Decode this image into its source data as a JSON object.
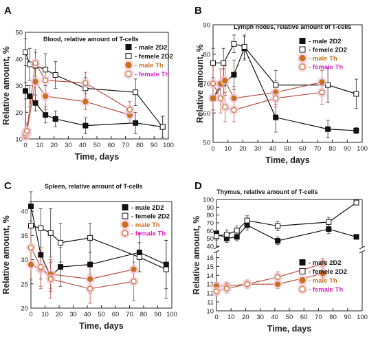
{
  "colors": {
    "male2D2": "#111111",
    "female2D2": "#111111",
    "maleTh": "#c8701e",
    "femaleTh": "#c8701e",
    "maleThText": "#c8701e",
    "femaleThText": "#e020c0",
    "thLine": "#b85040",
    "thHalo": "#f2c4dc"
  },
  "chart_data": [
    {
      "panel": "A",
      "type": "line",
      "title": "Blood, relative amount of T-cells",
      "xlabel": "Time, days",
      "ylabel": "Relative amount, %",
      "xlim": [
        0,
        100
      ],
      "ylim": [
        10,
        50
      ],
      "xticks": [
        0,
        10,
        20,
        30,
        40,
        50,
        60,
        70,
        80,
        90,
        100
      ],
      "yticks": [
        10,
        20,
        30,
        40,
        50
      ],
      "legend_position": "top-right",
      "series": [
        {
          "name": "- male 2D2",
          "marker": "filled-square",
          "x": [
            0,
            3,
            7,
            14,
            21,
            42,
            77,
            96
          ],
          "y": [
            28,
            26,
            23.5,
            19,
            17.5,
            15,
            16,
            14.5
          ],
          "err": [
            3,
            4,
            3,
            3,
            3,
            3,
            4,
            4
          ]
        },
        {
          "name": "- femele 2D2",
          "marker": "open-square",
          "x": [
            0,
            3,
            7,
            14,
            21,
            42,
            77,
            96
          ],
          "y": [
            42.5,
            38,
            37.5,
            36,
            34,
            29,
            27.5,
            14.5
          ],
          "err": [
            5,
            6,
            5,
            6,
            5,
            4,
            5,
            4
          ]
        },
        {
          "name": "- male Th",
          "marker": "filled-circle",
          "x": [
            0,
            1,
            7,
            14,
            42,
            73
          ],
          "y": [
            11,
            12.5,
            31.5,
            26,
            24,
            19
          ],
          "err": [
            1,
            2,
            5,
            5,
            3,
            3
          ]
        },
        {
          "name": "- female Th",
          "marker": "open-circle",
          "x": [
            0,
            1,
            7,
            14,
            42,
            73
          ],
          "y": [
            12,
            13,
            38.5,
            32,
            31,
            21
          ],
          "err": [
            2,
            3,
            5,
            5,
            4,
            3
          ]
        }
      ]
    },
    {
      "panel": "B",
      "type": "line",
      "title": "Lymph nodes, relative amount of T-cells",
      "xlabel": "Time, days",
      "ylabel": "Relative amount, %",
      "xlim": [
        0,
        100
      ],
      "ylim": [
        50,
        90
      ],
      "xticks": [
        0,
        10,
        20,
        30,
        40,
        50,
        60,
        70,
        80,
        90,
        100
      ],
      "yticks": [
        50,
        60,
        70,
        80,
        90
      ],
      "legend_position": "top-right",
      "series": [
        {
          "name": "- male 2D2",
          "marker": "filled-square",
          "x": [
            0,
            7,
            14,
            21,
            42,
            77,
            96
          ],
          "y": [
            65,
            70,
            73,
            82,
            58.5,
            54.5,
            54
          ],
          "err": [
            4,
            5,
            5,
            4,
            5,
            3,
            1
          ]
        },
        {
          "name": "- femele 2D2",
          "marker": "open-square",
          "x": [
            0,
            7,
            14,
            21,
            42,
            77,
            96
          ],
          "y": [
            77,
            77,
            83.5,
            82.5,
            69.5,
            69.5,
            66.5
          ],
          "err": [
            5,
            5,
            3,
            4,
            5,
            6,
            5
          ]
        },
        {
          "name": "- male Th",
          "marker": "filled-circle",
          "x": [
            0,
            5,
            8,
            14,
            42,
            73
          ],
          "y": [
            65,
            70,
            71,
            65,
            67,
            70.5
          ],
          "err": [
            5,
            5,
            5,
            4,
            4,
            4
          ]
        },
        {
          "name": "- female Th",
          "marker": "open-circle",
          "x": [
            0,
            5,
            8,
            14,
            42,
            73
          ],
          "y": [
            70,
            65,
            62,
            61,
            65,
            67
          ],
          "err": [
            6,
            5,
            5,
            4,
            3,
            4
          ]
        }
      ]
    },
    {
      "panel": "C",
      "type": "line",
      "title": "Spleen, relative amount of T-cells",
      "xlabel": "Time, days",
      "ylabel": "Relative amount, %",
      "xlim": [
        0,
        100
      ],
      "ylim": [
        20,
        42
      ],
      "xticks": [
        0,
        10,
        20,
        30,
        40,
        50,
        60,
        70,
        80,
        90,
        100
      ],
      "yticks": [
        20,
        25,
        30,
        35,
        40
      ],
      "legend_position": "top-right",
      "series": [
        {
          "name": "- male 2D2",
          "marker": "filled-square",
          "x": [
            0,
            7,
            14,
            21,
            42,
            77,
            96
          ],
          "y": [
            41,
            31,
            26.5,
            28.5,
            29,
            31.5,
            29
          ],
          "err": [
            3,
            5,
            3,
            4,
            5,
            4,
            5
          ]
        },
        {
          "name": "- femele 2D2",
          "marker": "open-square",
          "x": [
            0,
            7,
            14,
            21,
            42,
            77,
            96
          ],
          "y": [
            37,
            36.5,
            35.5,
            33.5,
            34.5,
            30.5,
            28
          ],
          "err": [
            5,
            4,
            5,
            4,
            3,
            3,
            6
          ]
        },
        {
          "name": "- male Th",
          "marker": "filled-circle",
          "x": [
            0,
            7,
            14,
            42,
            73
          ],
          "y": [
            29,
            28,
            27,
            26,
            28
          ],
          "err": [
            3,
            4,
            3,
            3,
            3
          ]
        },
        {
          "name": "- female Th",
          "marker": "open-circle",
          "x": [
            0,
            7,
            14,
            42,
            73
          ],
          "y": [
            32.5,
            28.5,
            26,
            24,
            25.5
          ],
          "err": [
            4,
            4,
            4,
            3,
            4
          ]
        }
      ]
    },
    {
      "panel": "D",
      "type": "line",
      "title": "Thymus, relative amount of T-cells",
      "xlabel": "Time, days",
      "ylabel": "Relative amount, %",
      "xlim": [
        0,
        100
      ],
      "ylim_upper": [
        40,
        100
      ],
      "ylim_lower": [
        10,
        16.5
      ],
      "broken_axis": true,
      "xticks": [
        0,
        10,
        20,
        30,
        40,
        50,
        60,
        70,
        80,
        90,
        100
      ],
      "yticks_upper": [
        40,
        50,
        60,
        70,
        80,
        90,
        100
      ],
      "yticks_lower": [
        10,
        11,
        12,
        13,
        14,
        15,
        16
      ],
      "legend_position": "bottom-right",
      "series": [
        {
          "name": "- male 2D2",
          "marker": "filled-square",
          "axis": "upper",
          "x": [
            0,
            7,
            14,
            21,
            42,
            77,
            96
          ],
          "y": [
            56,
            50,
            52,
            67,
            47,
            62,
            52
          ],
          "err": [
            4,
            5,
            5,
            6,
            5,
            6,
            3
          ]
        },
        {
          "name": "- femele 2D2",
          "marker": "open-square",
          "axis": "upper",
          "x": [
            0,
            7,
            14,
            21,
            42,
            77,
            96
          ],
          "y": [
            53,
            55,
            60,
            73,
            66,
            71,
            96
          ],
          "err": [
            5,
            6,
            6,
            6,
            6,
            6,
            2
          ]
        },
        {
          "name": "- male Th",
          "marker": "filled-circle",
          "axis": "lower",
          "x": [
            0,
            7,
            21,
            42,
            73
          ],
          "y": [
            12.8,
            12.8,
            13,
            13,
            14.2
          ],
          "err": [
            0.4,
            0.4,
            0.4,
            0.5,
            0.5
          ]
        },
        {
          "name": "- female Th",
          "marker": "open-circle",
          "axis": "lower",
          "x": [
            0,
            7,
            21,
            42,
            73
          ],
          "y": [
            12.2,
            12.5,
            13,
            13.8,
            15.3
          ],
          "err": [
            0.5,
            0.5,
            0.5,
            0.6,
            0.6
          ]
        }
      ]
    }
  ]
}
